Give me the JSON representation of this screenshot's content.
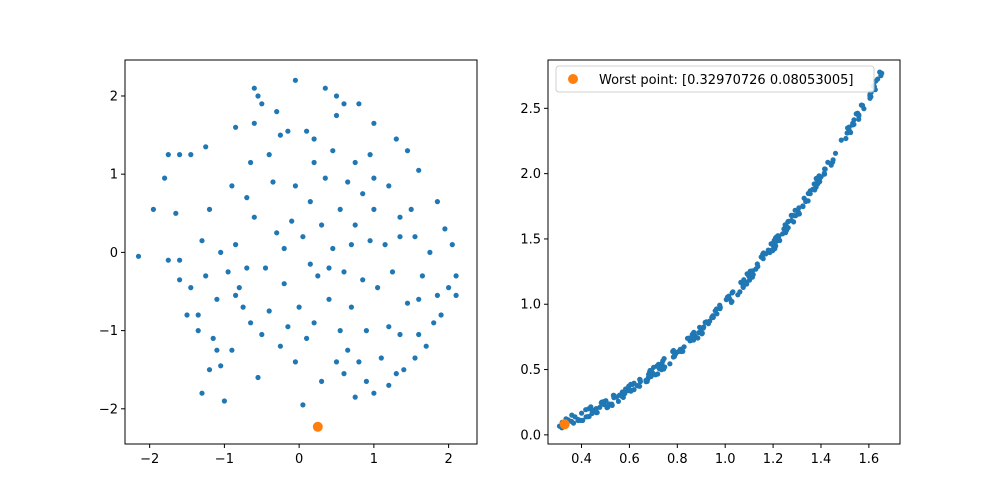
{
  "colors": {
    "scatter": "#1f77b4",
    "highlight": "#ff7f0e"
  },
  "chart_data": [
    {
      "type": "scatter",
      "title": "",
      "xlabel": "",
      "ylabel": "",
      "xlim": [
        -2.33,
        2.38
      ],
      "ylim": [
        -2.45,
        2.46
      ],
      "xticks": [
        -2,
        -1,
        0,
        1,
        2
      ],
      "yticks": [
        -2,
        -1,
        0,
        1,
        2
      ],
      "tick_labels_x": [
        "−2",
        "−1",
        "0",
        "1",
        "2"
      ],
      "tick_labels_y": [
        "−2",
        "−1",
        "0",
        "1",
        "2"
      ],
      "grid": false,
      "series": [
        {
          "color": "#1f77b4",
          "points": [
            [
              -2.15,
              -0.05
            ],
            [
              -1.95,
              0.55
            ],
            [
              -1.8,
              0.95
            ],
            [
              -1.75,
              1.25
            ],
            [
              -1.6,
              1.25
            ],
            [
              -1.45,
              1.25
            ],
            [
              -1.25,
              1.35
            ],
            [
              -1.65,
              0.5
            ],
            [
              -1.75,
              -0.1
            ],
            [
              -1.6,
              -0.35
            ],
            [
              -1.5,
              -0.8
            ],
            [
              -1.35,
              -0.8
            ],
            [
              -1.3,
              -1.8
            ],
            [
              -1.2,
              -1.5
            ],
            [
              -1.15,
              -1.1
            ],
            [
              -1.1,
              -1.25
            ],
            [
              -1.05,
              -1.45
            ],
            [
              -1.0,
              -1.9
            ],
            [
              -1.2,
              0.55
            ],
            [
              -1.05,
              0.0
            ],
            [
              -0.95,
              -0.25
            ],
            [
              -0.85,
              0.1
            ],
            [
              -0.8,
              -0.45
            ],
            [
              -0.75,
              -0.7
            ],
            [
              -0.7,
              0.7
            ],
            [
              -0.65,
              1.15
            ],
            [
              -0.6,
              2.1
            ],
            [
              -0.55,
              2.0
            ],
            [
              -0.5,
              1.9
            ],
            [
              -0.4,
              1.25
            ],
            [
              -0.3,
              1.8
            ],
            [
              -0.25,
              1.5
            ],
            [
              -0.15,
              1.55
            ],
            [
              -0.05,
              2.2
            ],
            [
              0.1,
              1.55
            ],
            [
              0.2,
              1.45
            ],
            [
              0.35,
              2.1
            ],
            [
              0.5,
              2.0
            ],
            [
              0.6,
              1.9
            ],
            [
              0.8,
              1.9
            ],
            [
              1.0,
              1.65
            ],
            [
              1.3,
              1.45
            ],
            [
              1.45,
              1.3
            ],
            [
              1.6,
              1.05
            ],
            [
              1.85,
              0.65
            ],
            [
              1.95,
              0.3
            ],
            [
              2.05,
              0.1
            ],
            [
              2.1,
              -0.3
            ],
            [
              2.1,
              -0.55
            ],
            [
              2.0,
              -0.45
            ],
            [
              1.9,
              -0.8
            ],
            [
              1.8,
              -0.9
            ],
            [
              1.7,
              -1.2
            ],
            [
              1.6,
              -1.05
            ],
            [
              1.55,
              -1.35
            ],
            [
              1.4,
              -1.5
            ],
            [
              1.3,
              -1.55
            ],
            [
              1.2,
              -1.7
            ],
            [
              1.0,
              -1.8
            ],
            [
              0.9,
              -1.65
            ],
            [
              0.75,
              -1.85
            ],
            [
              0.6,
              -1.55
            ],
            [
              0.5,
              -1.4
            ],
            [
              0.3,
              -1.65
            ],
            [
              0.05,
              -1.95
            ],
            [
              -0.05,
              -1.4
            ],
            [
              -0.25,
              -1.2
            ],
            [
              -0.5,
              -1.05
            ],
            [
              -0.65,
              -0.9
            ],
            [
              -0.85,
              -0.55
            ],
            [
              0.05,
              0.2
            ],
            [
              0.25,
              -0.3
            ],
            [
              0.45,
              0.05
            ],
            [
              0.6,
              -0.25
            ],
            [
              0.75,
              0.35
            ],
            [
              0.85,
              0.75
            ],
            [
              1.0,
              0.55
            ],
            [
              1.15,
              0.1
            ],
            [
              1.25,
              -0.25
            ],
            [
              1.35,
              0.45
            ],
            [
              1.45,
              -0.65
            ],
            [
              1.55,
              0.2
            ],
            [
              1.65,
              -0.3
            ],
            [
              0.35,
              0.95
            ],
            [
              0.15,
              0.65
            ],
            [
              -0.1,
              0.4
            ],
            [
              -0.3,
              0.25
            ],
            [
              -0.45,
              -0.2
            ],
            [
              -0.2,
              -0.4
            ],
            [
              0.0,
              -0.7
            ],
            [
              0.2,
              -0.9
            ],
            [
              0.4,
              -0.6
            ],
            [
              0.55,
              -1.0
            ],
            [
              0.7,
              -0.7
            ],
            [
              0.9,
              -1.0
            ],
            [
              1.05,
              -0.45
            ],
            [
              1.2,
              -0.95
            ],
            [
              0.95,
              0.15
            ],
            [
              0.65,
              0.9
            ],
            [
              0.45,
              1.3
            ],
            [
              -0.6,
              0.45
            ],
            [
              -0.9,
              0.85
            ],
            [
              -1.3,
              0.15
            ],
            [
              -1.45,
              -0.45
            ],
            [
              -1.35,
              -1.0
            ],
            [
              -0.9,
              -1.25
            ],
            [
              -0.55,
              -1.6
            ],
            [
              0.5,
              1.75
            ],
            [
              0.75,
              1.15
            ],
            [
              -0.35,
              0.9
            ],
            [
              1.2,
              0.85
            ],
            [
              1.5,
              0.55
            ],
            [
              1.75,
              0.0
            ],
            [
              -0.2,
              0.05
            ],
            [
              0.3,
              0.35
            ],
            [
              0.85,
              -0.35
            ],
            [
              0.65,
              -1.25
            ],
            [
              1.1,
              -1.35
            ],
            [
              -0.7,
              -0.2
            ],
            [
              -1.1,
              -0.6
            ],
            [
              0.4,
              -0.2
            ],
            [
              0.55,
              0.55
            ],
            [
              0.2,
              1.15
            ],
            [
              -0.05,
              0.85
            ],
            [
              1.35,
              -1.05
            ],
            [
              1.0,
              0.95
            ],
            [
              -0.4,
              -0.75
            ],
            [
              0.1,
              -1.1
            ],
            [
              0.8,
              -1.4
            ],
            [
              1.6,
              -0.6
            ],
            [
              -1.6,
              -0.1
            ],
            [
              -1.25,
              -0.3
            ],
            [
              -0.85,
              1.6
            ],
            [
              -0.6,
              1.65
            ],
            [
              0.95,
              1.25
            ],
            [
              1.35,
              0.2
            ],
            [
              0.15,
              -0.15
            ],
            [
              0.7,
              0.1
            ],
            [
              1.85,
              -0.55
            ],
            [
              -0.15,
              -0.95
            ]
          ]
        },
        {
          "color": "#ff7f0e",
          "points": [
            [
              0.25,
              -2.23
            ]
          ]
        }
      ]
    },
    {
      "type": "scatter",
      "title": "",
      "xlabel": "",
      "ylabel": "",
      "xlim": [
        0.26,
        1.73
      ],
      "ylim": [
        -0.07,
        2.87
      ],
      "xticks": [
        0.4,
        0.6,
        0.8,
        1.0,
        1.2,
        1.4,
        1.6
      ],
      "yticks": [
        0.0,
        0.5,
        1.0,
        1.5,
        2.0,
        2.5
      ],
      "tick_labels_x": [
        "0.4",
        "0.6",
        "0.8",
        "1.0",
        "1.2",
        "1.4",
        "1.6"
      ],
      "tick_labels_y": [
        "0.0",
        "0.5",
        "1.0",
        "1.5",
        "2.0",
        "2.5"
      ],
      "grid": false,
      "curve": {
        "a": 1.02,
        "p": 2.0,
        "noise": 0.04,
        "x_from": 0.3,
        "x_to": 1.66,
        "count": 300
      },
      "legend": {
        "placement": "top-left",
        "label": "Worst point: [0.32970726 0.08053005]"
      },
      "series": [
        {
          "color": "#1f77b4",
          "points": []
        },
        {
          "name": "Worst point: [0.32970726 0.08053005]",
          "color": "#ff7f0e",
          "points": [
            [
              0.3297,
              0.0805
            ]
          ]
        }
      ]
    }
  ]
}
